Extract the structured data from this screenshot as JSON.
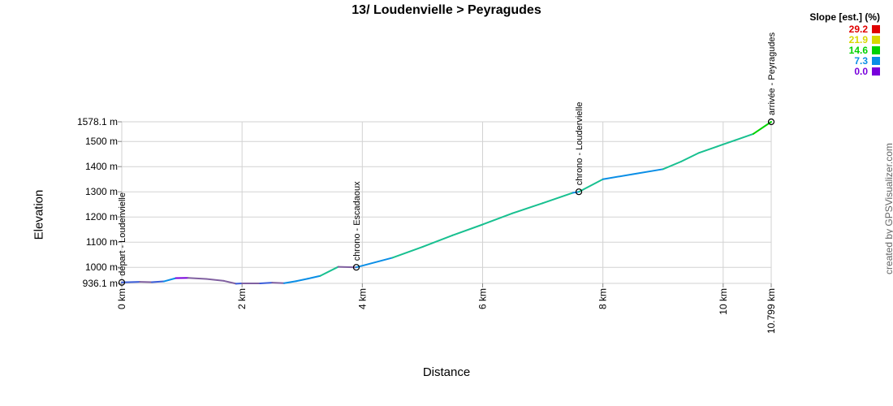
{
  "chart_data": {
    "type": "line",
    "title": "13/ Loudenvielle > Peyragudes",
    "xlabel": "Distance",
    "ylabel": "Elevation",
    "xlim": [
      0,
      10.799
    ],
    "ylim": [
      936.1,
      1578.1
    ],
    "x_ticks": [
      {
        "value": 0,
        "label": "0 km"
      },
      {
        "value": 2,
        "label": "2 km"
      },
      {
        "value": 4,
        "label": "4 km"
      },
      {
        "value": 6,
        "label": "6 km"
      },
      {
        "value": 8,
        "label": "8 km"
      },
      {
        "value": 10,
        "label": "10 km"
      },
      {
        "value": 10.799,
        "label": "10.799 km"
      }
    ],
    "y_ticks": [
      {
        "value": 936.1,
        "label": "936.1 m"
      },
      {
        "value": 1000,
        "label": "1000 m"
      },
      {
        "value": 1100,
        "label": "1100 m"
      },
      {
        "value": 1200,
        "label": "1200 m"
      },
      {
        "value": 1300,
        "label": "1300 m"
      },
      {
        "value": 1400,
        "label": "1400 m"
      },
      {
        "value": 1500,
        "label": "1500 m"
      },
      {
        "value": 1578.1,
        "label": "1578.1 m"
      }
    ],
    "grid": true,
    "series": [
      {
        "profile": [
          [
            0,
            940
          ],
          [
            0.3,
            942
          ],
          [
            0.5,
            941
          ],
          [
            0.7,
            944
          ],
          [
            0.9,
            957
          ],
          [
            1.1,
            958
          ],
          [
            1.4,
            954
          ],
          [
            1.7,
            946
          ],
          [
            1.9,
            935
          ],
          [
            2.0,
            936.1
          ],
          [
            2.3,
            936
          ],
          [
            2.5,
            939
          ],
          [
            2.7,
            937
          ],
          [
            2.9,
            945
          ],
          [
            3.1,
            955
          ],
          [
            3.3,
            966
          ],
          [
            3.6,
            1002
          ],
          [
            3.9,
            1000
          ],
          [
            4.5,
            1038
          ],
          [
            5.0,
            1081
          ],
          [
            5.5,
            1127
          ],
          [
            6.0,
            1170
          ],
          [
            6.5,
            1215
          ],
          [
            7.0,
            1255
          ],
          [
            7.5,
            1296
          ],
          [
            7.6,
            1300
          ],
          [
            8.0,
            1350
          ],
          [
            8.5,
            1370
          ],
          [
            9.0,
            1390
          ],
          [
            9.3,
            1420
          ],
          [
            9.6,
            1455
          ],
          [
            9.9,
            1480
          ],
          [
            10.2,
            1505
          ],
          [
            10.5,
            1530
          ],
          [
            10.799,
            1578.1
          ]
        ]
      }
    ],
    "markers": [
      {
        "x": 0,
        "y": 940,
        "label": "départ - Loudenvielle"
      },
      {
        "x": 3.9,
        "y": 1000,
        "label": "chrono - Escadaoux"
      },
      {
        "x": 7.6,
        "y": 1300,
        "label": "chrono - Loudervielle"
      },
      {
        "x": 10.799,
        "y": 1578.1,
        "label": "arrivée - Peyragudes"
      }
    ],
    "legend": {
      "title": "Slope [est.] (%)",
      "placement": "top-right",
      "items": [
        {
          "label": "29.2",
          "color": "#e00000"
        },
        {
          "label": "21.9",
          "color": "#d8d800"
        },
        {
          "label": "14.6",
          "color": "#00d200"
        },
        {
          "label": "7.3",
          "color": "#0a8ee6"
        },
        {
          "label": "0.0",
          "color": "#7800dc"
        }
      ]
    }
  },
  "credit": "created by GPSVisualizer.com"
}
